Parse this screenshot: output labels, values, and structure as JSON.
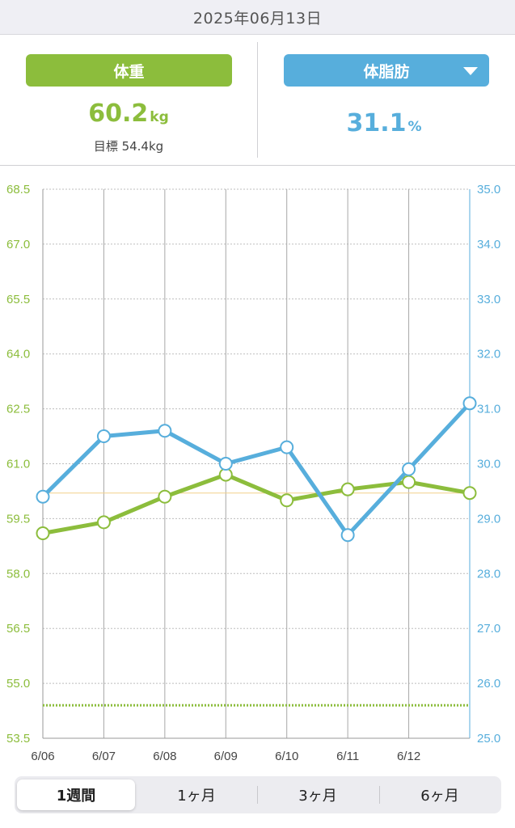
{
  "header": {
    "date": "2025年06月13日"
  },
  "left_panel": {
    "button_label": "体重",
    "value": "60.2",
    "unit": "kg",
    "goal_text": "目標 54.4kg"
  },
  "right_panel": {
    "button_label": "体脂肪",
    "value": "31.1",
    "unit": "%"
  },
  "colors": {
    "weight": "#8cbd3c",
    "fat": "#57aedc",
    "grid": "#c9c9c9",
    "reference": "#f2d08a"
  },
  "chart_data": {
    "type": "line",
    "x": [
      "6/06",
      "6/07",
      "6/08",
      "6/09",
      "6/10",
      "6/11",
      "6/12",
      "6/13"
    ],
    "x_tick_labels": [
      "6/06",
      "6/07",
      "6/08",
      "6/09",
      "6/10",
      "6/11",
      "6/12"
    ],
    "left_axis": {
      "ylim": [
        53.5,
        68.5
      ],
      "ticks": [
        "68.5",
        "67.0",
        "65.5",
        "64.0",
        "62.5",
        "61.0",
        "59.5",
        "58.0",
        "56.5",
        "55.0",
        "53.5"
      ],
      "color": "#8cbd3c"
    },
    "right_axis": {
      "ylim": [
        25.0,
        35.0
      ],
      "ticks": [
        "35.0",
        "34.0",
        "33.0",
        "32.0",
        "31.0",
        "30.0",
        "29.0",
        "28.0",
        "27.0",
        "26.0",
        "25.0"
      ],
      "color": "#57aedc"
    },
    "series": [
      {
        "axis": "left",
        "values": [
          59.1,
          59.4,
          60.1,
          60.7,
          60.0,
          60.3,
          60.5,
          60.2
        ]
      },
      {
        "axis": "right",
        "values": [
          29.4,
          30.5,
          30.6,
          30.0,
          30.3,
          28.7,
          29.9,
          31.1
        ]
      }
    ],
    "reference_lines": [
      {
        "axis": "left",
        "value": 60.2,
        "style": "solid"
      },
      {
        "axis": "left",
        "value": 54.4,
        "style": "dotted"
      }
    ],
    "grid": true
  },
  "period_tabs": [
    {
      "label": "1週間",
      "active": true
    },
    {
      "label": "1ヶ月",
      "active": false
    },
    {
      "label": "3ヶ月",
      "active": false
    },
    {
      "label": "6ヶ月",
      "active": false
    }
  ]
}
